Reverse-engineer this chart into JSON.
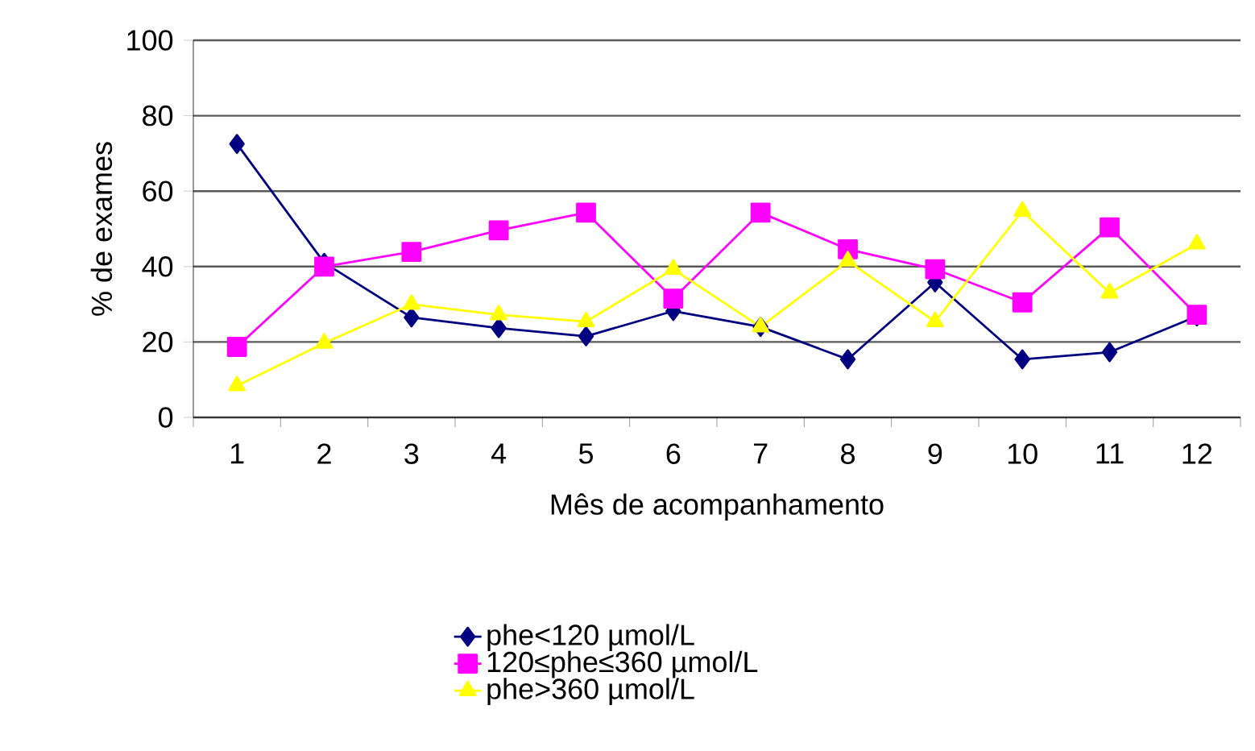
{
  "chart_data": {
    "type": "line",
    "xlabel": "Mês de acompanhamento",
    "ylabel": "% de exames",
    "categories": [
      "1",
      "2",
      "3",
      "4",
      "5",
      "6",
      "7",
      "8",
      "9",
      "10",
      "11",
      "12"
    ],
    "ylim": [
      0,
      100
    ],
    "yticks": [
      0,
      20,
      40,
      60,
      80,
      100
    ],
    "grid": "y",
    "legend": "bottom",
    "series": [
      {
        "name": "phe<120 µmol/L",
        "color": "#000080",
        "marker": "diamond",
        "values": [
          72.5,
          41,
          26.5,
          23.7,
          21.5,
          28.2,
          24,
          15.4,
          35.8,
          15.4,
          17.3,
          26.8
        ]
      },
      {
        "name": "120≤phe≤360 µmol/L",
        "color": "#ff00ff",
        "marker": "square",
        "values": [
          18.7,
          40,
          43.9,
          49.6,
          54.3,
          31.5,
          54.3,
          44.6,
          39.3,
          30.5,
          50.4,
          27.2
        ]
      },
      {
        "name": "phe>360 µmol/L",
        "color": "#ffff00",
        "marker": "triangle",
        "values": [
          8.4,
          19.7,
          30,
          27.2,
          25.4,
          39.3,
          24,
          41.5,
          25.4,
          54.7,
          33,
          46
        ]
      }
    ]
  }
}
